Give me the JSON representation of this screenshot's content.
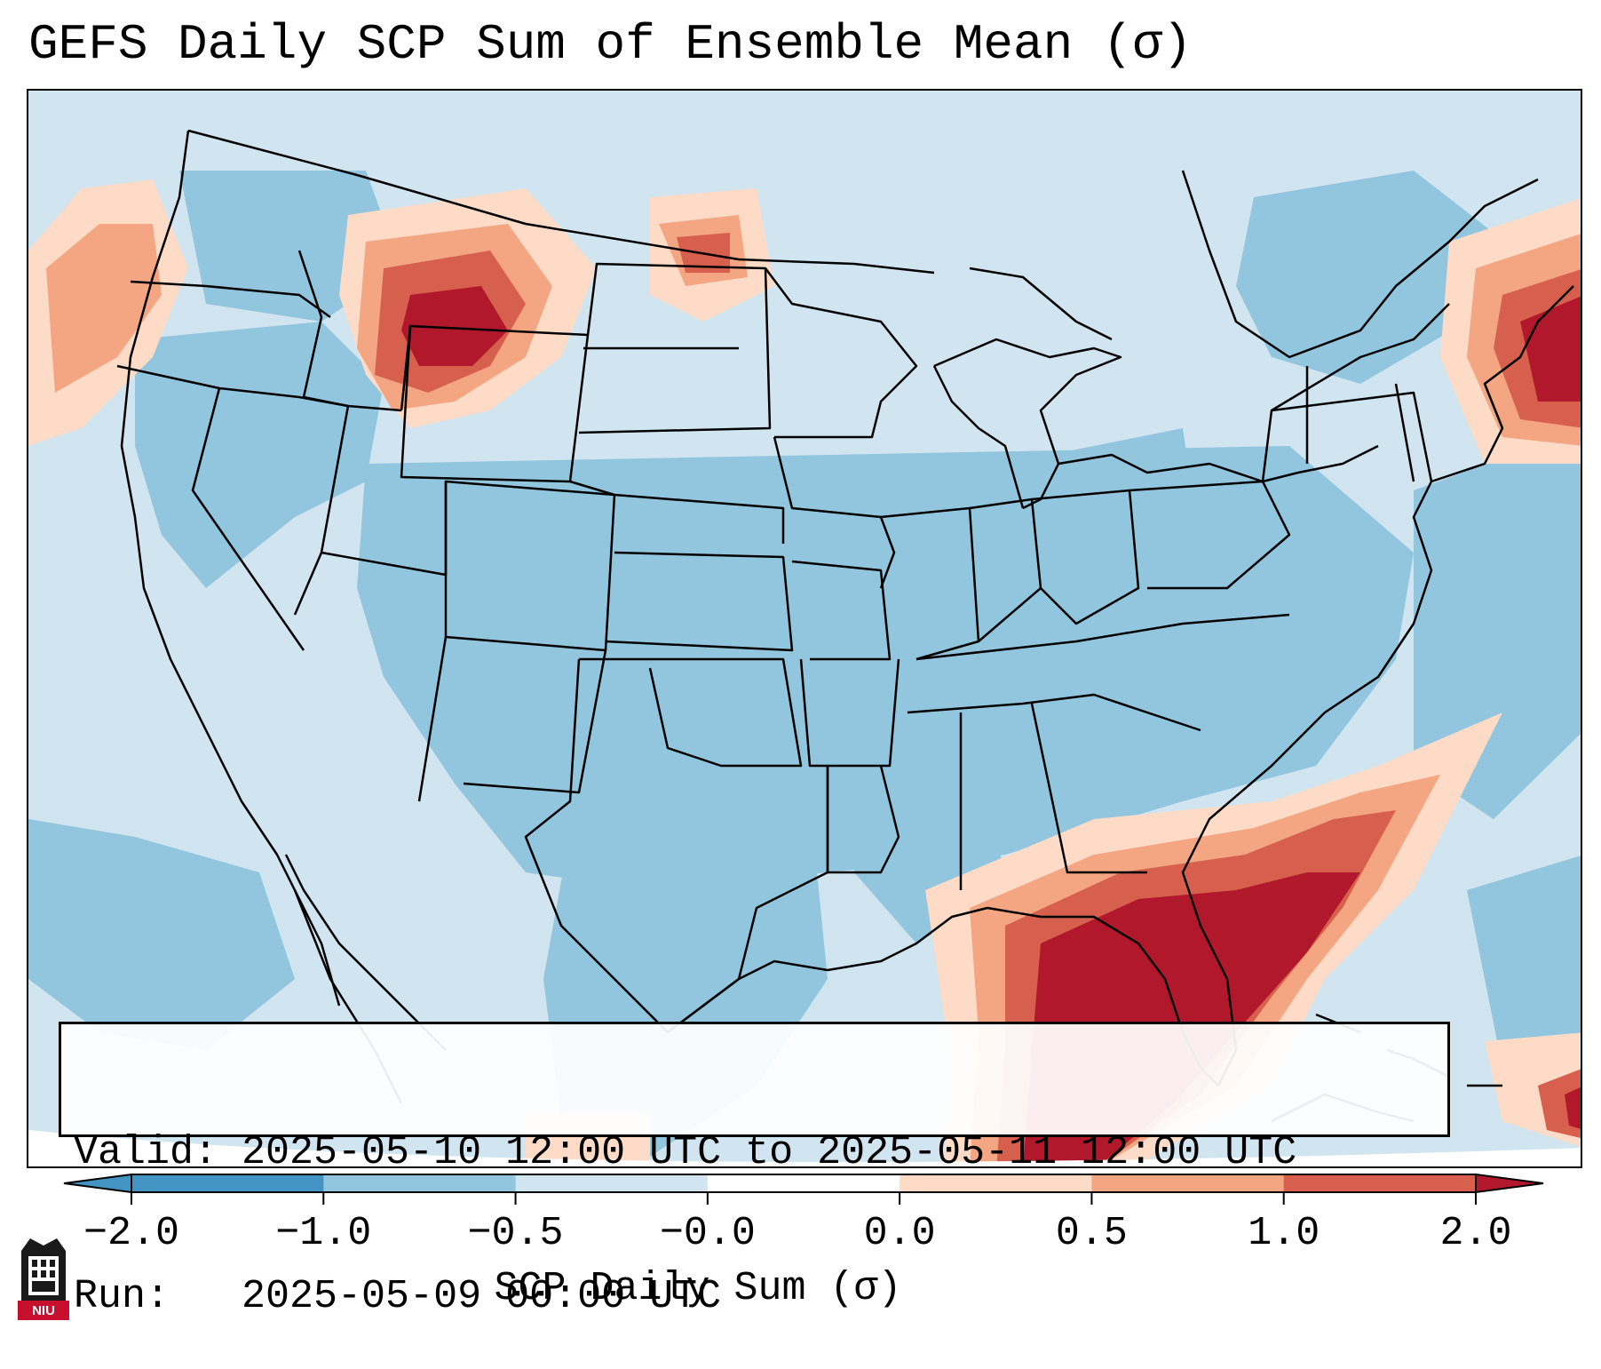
{
  "title": "GEFS Daily SCP Sum of Ensemble Mean (σ)",
  "info": {
    "valid_line": "Valid: 2025-05-10 12:00 UTC to 2025-05-11 12:00 UTC",
    "run_line": "Run:   2025-05-09 00:00 UTC"
  },
  "colorbar": {
    "label": "SCP Daily Sum (σ)",
    "tick_labels": [
      "−2.0",
      "−1.0",
      "−0.5",
      "−0.0",
      "0.0",
      "0.5",
      "1.0",
      "2.0"
    ],
    "colors": [
      "#4393c3",
      "#92c5de",
      "#d1e5f0",
      "#ffffff",
      "#fddbc7",
      "#f4a582",
      "#d6604d",
      "#b2182b"
    ],
    "extend": "both"
  },
  "map": {
    "projection": "lambert-conformal CONUS",
    "background_color": "#d1e5f0",
    "boundaries": [
      "coastlines",
      "country-borders",
      "state-borders"
    ],
    "regions": [
      {
        "name": "southeast-gulf-high",
        "level": 2.0
      },
      {
        "name": "northeast-coast-high",
        "level": 2.0
      },
      {
        "name": "montana-idaho-high",
        "level": 2.0
      },
      {
        "name": "north-dakota-border",
        "level": 1.0
      },
      {
        "name": "pacific-northwest-offshore",
        "level": 0.5
      },
      {
        "name": "central-plains",
        "level": -1.0
      },
      {
        "name": "mississippi-valley",
        "level": -1.0
      }
    ]
  },
  "logo": {
    "text": "NIU",
    "icon": "university-tower-icon"
  }
}
